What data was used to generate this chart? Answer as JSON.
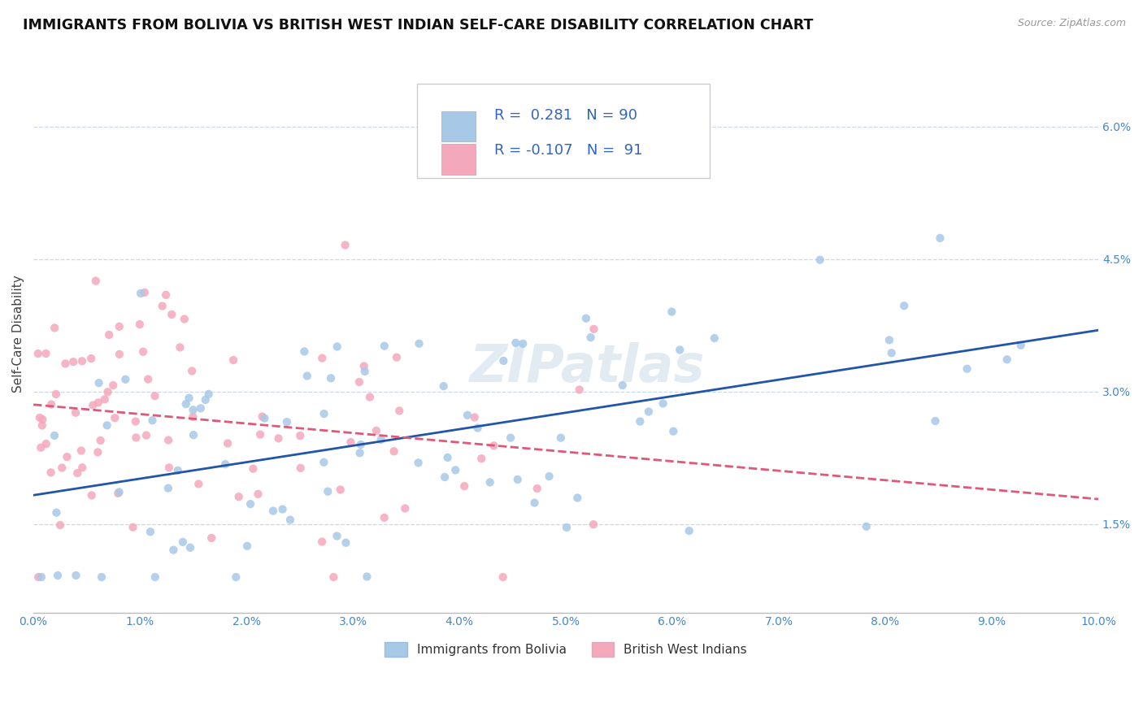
{
  "title": "IMMIGRANTS FROM BOLIVIA VS BRITISH WEST INDIAN SELF-CARE DISABILITY CORRELATION CHART",
  "source": "Source: ZipAtlas.com",
  "ylabel": "Self-Care Disability",
  "xlim": [
    0.0,
    0.1
  ],
  "ylim": [
    0.005,
    0.068
  ],
  "xticks": [
    0.0,
    0.01,
    0.02,
    0.03,
    0.04,
    0.05,
    0.06,
    0.07,
    0.08,
    0.09,
    0.1
  ],
  "yticks": [
    0.015,
    0.03,
    0.045,
    0.06
  ],
  "ytick_labels": [
    "1.5%",
    "3.0%",
    "4.5%",
    "6.0%"
  ],
  "xtick_labels": [
    "0.0%",
    "1.0%",
    "2.0%",
    "3.0%",
    "4.0%",
    "5.0%",
    "6.0%",
    "7.0%",
    "8.0%",
    "9.0%",
    "10.0%"
  ],
  "blue_color": "#a8c8e8",
  "pink_color": "#f4a8bc",
  "blue_line_color": "#2255aa",
  "pink_line_color": "#e05878",
  "grid_color": "#c8d8ec",
  "R_blue": 0.281,
  "N_blue": 90,
  "R_pink": -0.107,
  "N_pink": 91,
  "watermark": "ZIPatlas",
  "title_fontsize": 12.5,
  "axis_label_fontsize": 11,
  "tick_fontsize": 10,
  "legend_fontsize": 13,
  "tick_color": "#4488cc",
  "title_color": "#111111",
  "source_color": "#999999",
  "legend_text_color": "#3366bb"
}
